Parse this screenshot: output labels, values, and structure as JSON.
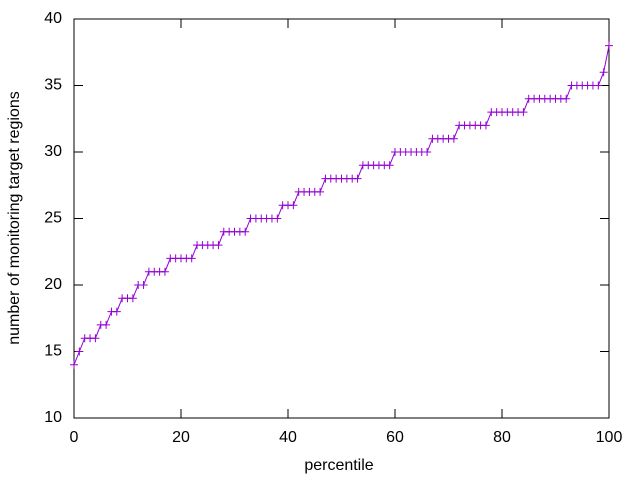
{
  "chart_data": {
    "type": "line",
    "x_label": "percentile",
    "y_label": "number of monitoring target regions",
    "x": [
      0,
      1,
      2,
      3,
      4,
      5,
      6,
      7,
      8,
      9,
      10,
      11,
      12,
      13,
      14,
      15,
      16,
      17,
      18,
      19,
      20,
      21,
      22,
      23,
      24,
      25,
      26,
      27,
      28,
      29,
      30,
      31,
      32,
      33,
      34,
      35,
      36,
      37,
      38,
      39,
      40,
      41,
      42,
      43,
      44,
      45,
      46,
      47,
      48,
      49,
      50,
      51,
      52,
      53,
      54,
      55,
      56,
      57,
      58,
      59,
      60,
      61,
      62,
      63,
      64,
      65,
      66,
      67,
      68,
      69,
      70,
      71,
      72,
      73,
      74,
      75,
      76,
      77,
      78,
      79,
      80,
      81,
      82,
      83,
      84,
      85,
      86,
      87,
      88,
      89,
      90,
      91,
      92,
      93,
      94,
      95,
      96,
      97,
      98,
      99,
      100
    ],
    "values": [
      14,
      15,
      16,
      16,
      16,
      17,
      17,
      18,
      18,
      19,
      19,
      19,
      20,
      20,
      21,
      21,
      21,
      21,
      22,
      22,
      22,
      22,
      22,
      23,
      23,
      23,
      23,
      23,
      24,
      24,
      24,
      24,
      24,
      25,
      25,
      25,
      25,
      25,
      25,
      26,
      26,
      26,
      27,
      27,
      27,
      27,
      27,
      28,
      28,
      28,
      28,
      28,
      28,
      28,
      29,
      29,
      29,
      29,
      29,
      29,
      30,
      30,
      30,
      30,
      30,
      30,
      30,
      31,
      31,
      31,
      31,
      31,
      32,
      32,
      32,
      32,
      32,
      32,
      33,
      33,
      33,
      33,
      33,
      33,
      33,
      34,
      34,
      34,
      34,
      34,
      34,
      34,
      34,
      35,
      35,
      35,
      35,
      35,
      35,
      36,
      38
    ],
    "color": "#9400d3",
    "xlim": [
      0,
      100
    ],
    "xticks": [
      0,
      20,
      40,
      60,
      80,
      100
    ],
    "ylim": [
      10,
      40
    ],
    "yticks": [
      10,
      15,
      20,
      25,
      30,
      35,
      40
    ],
    "grid": false
  }
}
